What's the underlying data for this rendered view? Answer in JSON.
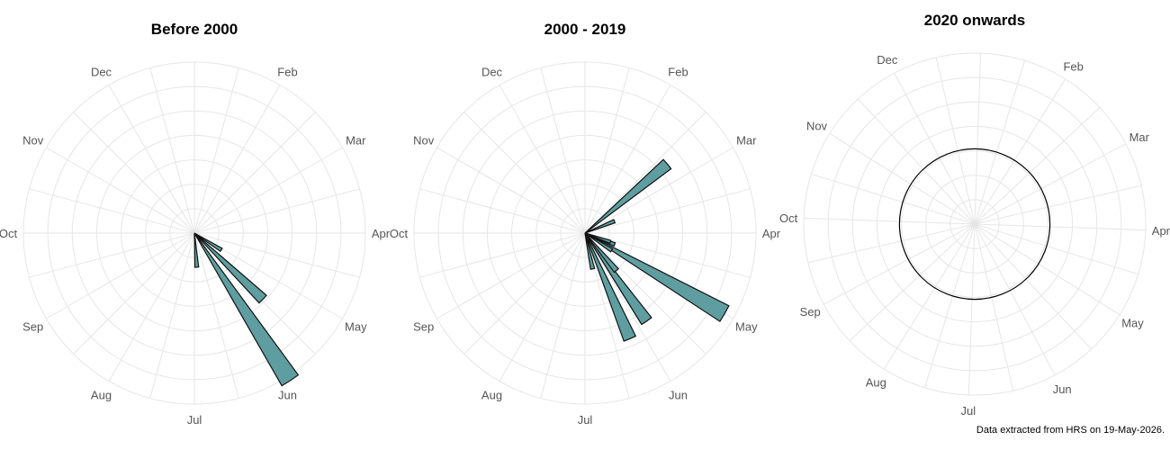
{
  "chart_data": [
    {
      "type": "polar-bar",
      "title": "Before 2000",
      "axis_labels": [
        "Jan",
        "Feb",
        "Mar",
        "Apr",
        "May",
        "Jun",
        "Jul",
        "Aug",
        "Sep",
        "Oct",
        "Nov",
        "Dec"
      ],
      "grid": true,
      "rmax": 7,
      "bars": [
        {
          "angle_deg": 147,
          "value": 7.2
        },
        {
          "angle_deg": 134,
          "value": 3.9
        },
        {
          "angle_deg": 122,
          "value": 1.3
        },
        {
          "angle_deg": 176,
          "value": 1.4
        }
      ]
    },
    {
      "type": "polar-bar",
      "title": "2000 - 2019",
      "axis_labels": [
        "Jan",
        "Feb",
        "Mar",
        "Apr",
        "May",
        "Jun",
        "Jul",
        "Aug",
        "Sep",
        "Oct",
        "Nov",
        "Dec"
      ],
      "grid": true,
      "rmax": 7,
      "bars": [
        {
          "angle_deg": 120,
          "value": 6.6
        },
        {
          "angle_deg": 145,
          "value": 4.4
        },
        {
          "angle_deg": 157,
          "value": 4.7
        },
        {
          "angle_deg": 168,
          "value": 1.5
        },
        {
          "angle_deg": 140,
          "value": 2.0
        },
        {
          "angle_deg": 111,
          "value": 1.3
        },
        {
          "angle_deg": 109,
          "value": 1.1
        },
        {
          "angle_deg": 123,
          "value": 1.3
        },
        {
          "angle_deg": 50,
          "value": 4.4
        },
        {
          "angle_deg": 68,
          "value": 1.3
        }
      ]
    },
    {
      "type": "polar-bar",
      "title": "2020 onwards",
      "axis_labels": [
        "Jan",
        "Feb",
        "Mar",
        "Apr",
        "May",
        "Jun",
        "Jul",
        "Aug",
        "Sep",
        "Oct",
        "Nov",
        "Dec"
      ],
      "grid": true,
      "rmax": 1,
      "bars": [],
      "reference_circle": 0.44
    }
  ],
  "caption": "Data extracted from HRS on 19-May-2026.",
  "colors": {
    "bar_fill": "#5f9ea0",
    "bar_stroke": "#111111",
    "grid": "#e6e6e6",
    "label": "#555555"
  }
}
